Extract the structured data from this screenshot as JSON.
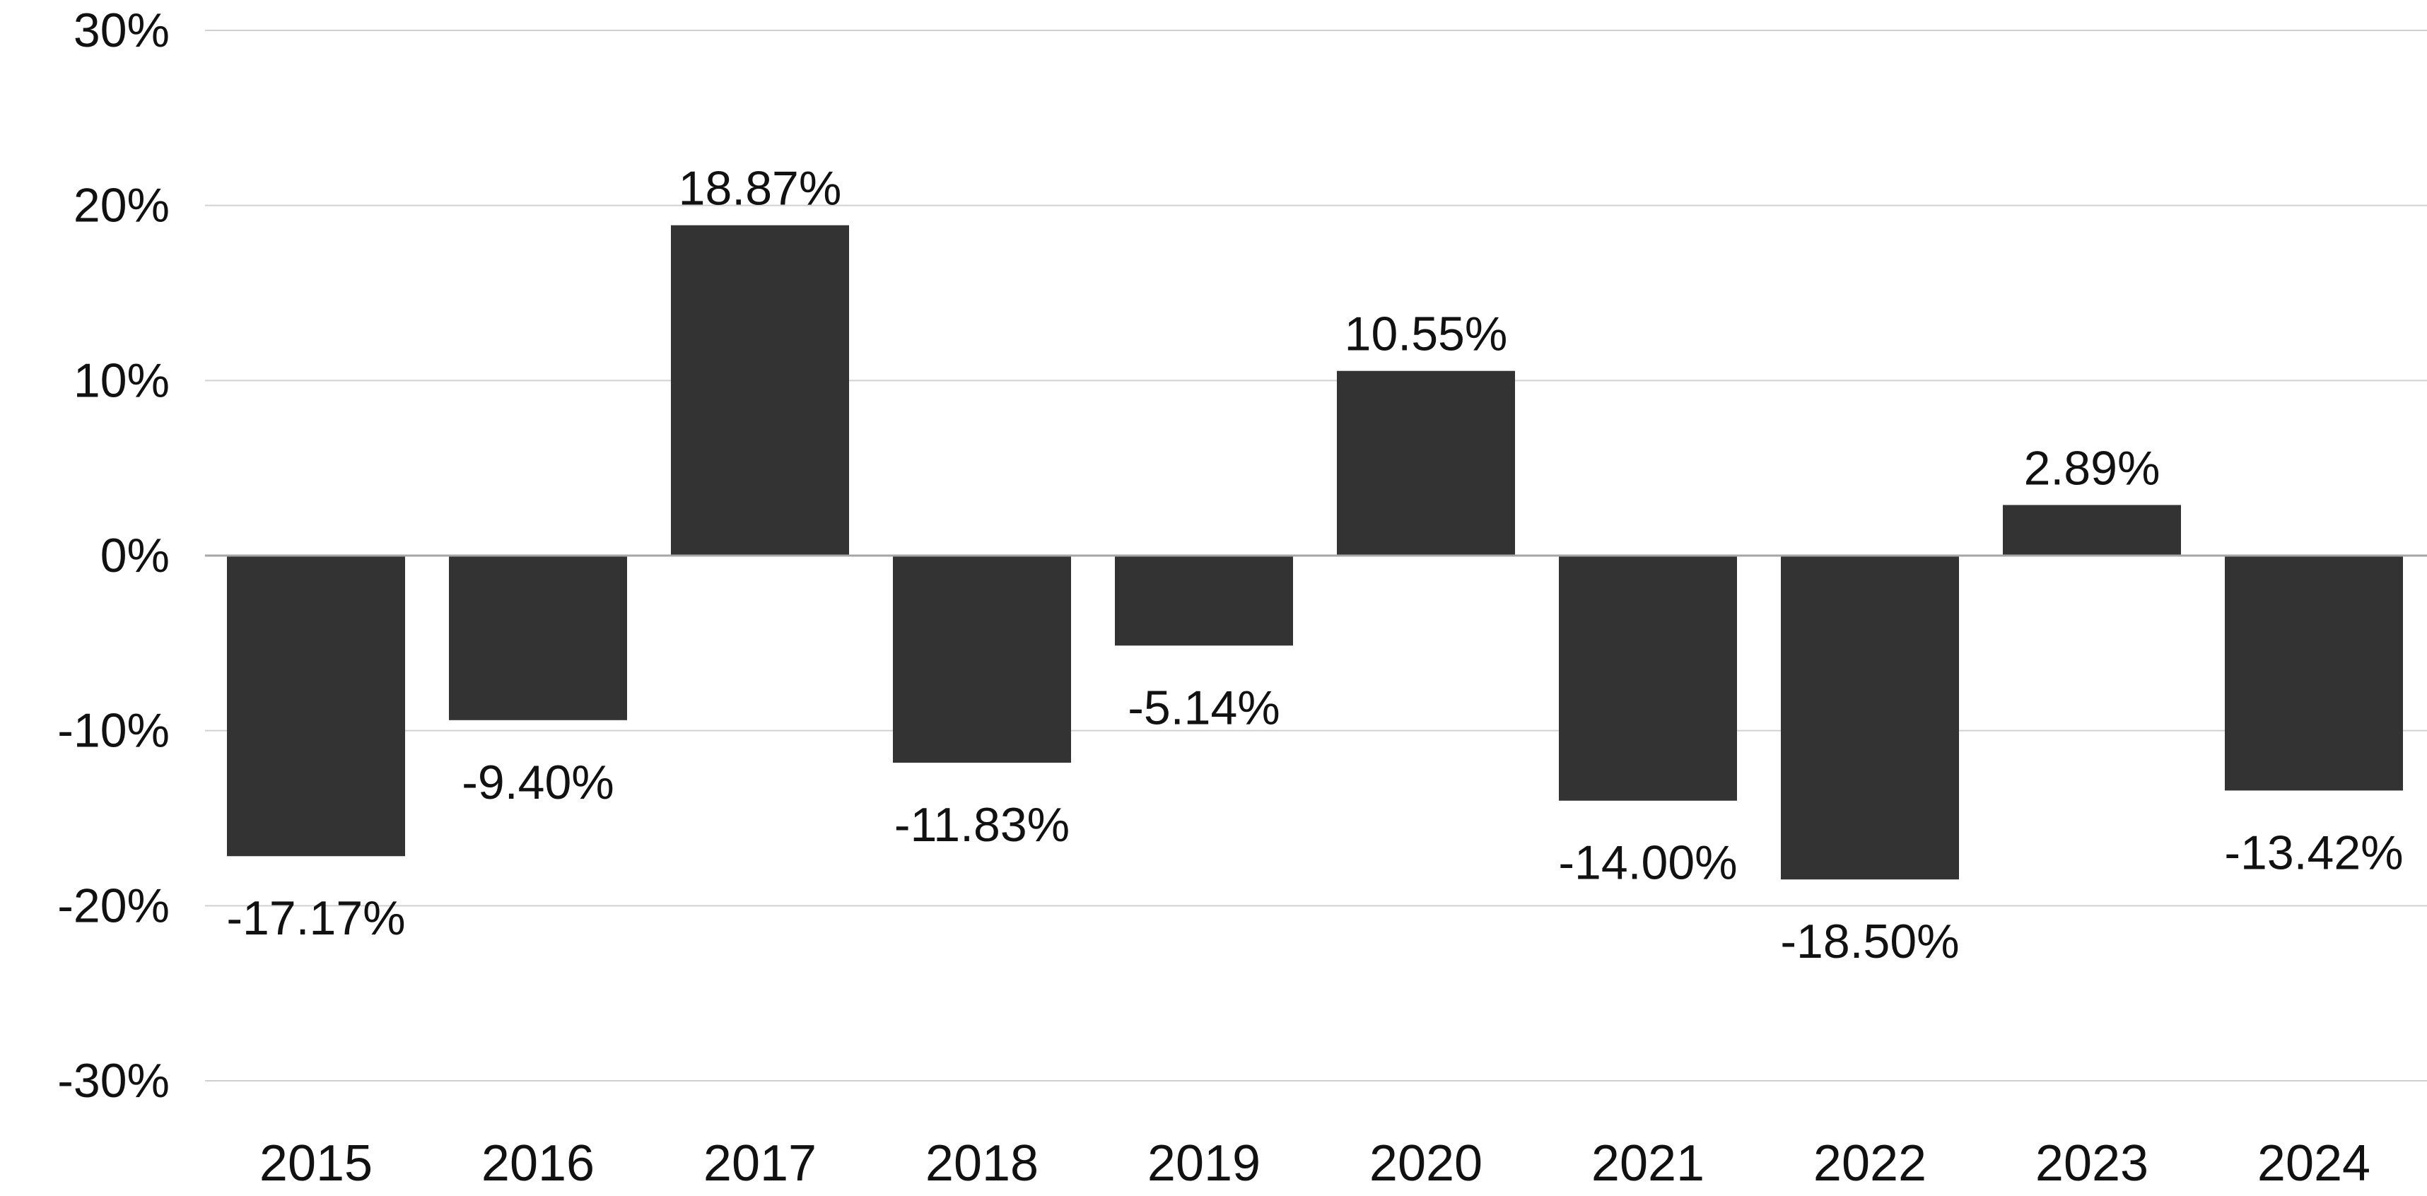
{
  "chart_data": {
    "type": "bar",
    "categories": [
      "2015",
      "2016",
      "2017",
      "2018",
      "2019",
      "2020",
      "2021",
      "2022",
      "2023",
      "2024"
    ],
    "values": [
      -17.17,
      -9.4,
      18.87,
      -11.83,
      -5.14,
      10.55,
      -14.0,
      -18.5,
      2.89,
      -13.42
    ],
    "data_labels": [
      "-17.17%",
      "-9.40%",
      "18.87%",
      "-11.83%",
      "-5.14%",
      "10.55%",
      "-14.00%",
      "-18.50%",
      "2.89%",
      "-13.42%"
    ],
    "yticks": [
      30,
      20,
      10,
      0,
      -10,
      -20,
      -30
    ],
    "ytick_labels": [
      "30%",
      "20%",
      "10%",
      "0%",
      "-10%",
      "-20%",
      "-30%"
    ],
    "ylim": [
      -30,
      30
    ],
    "title": "",
    "xlabel": "",
    "ylabel": "",
    "grid": true,
    "legend": "none",
    "colors": {
      "bar": "#333333",
      "grid": "#d0d0d0",
      "zero_line": "#a6a6a6",
      "text": "#111111"
    }
  }
}
